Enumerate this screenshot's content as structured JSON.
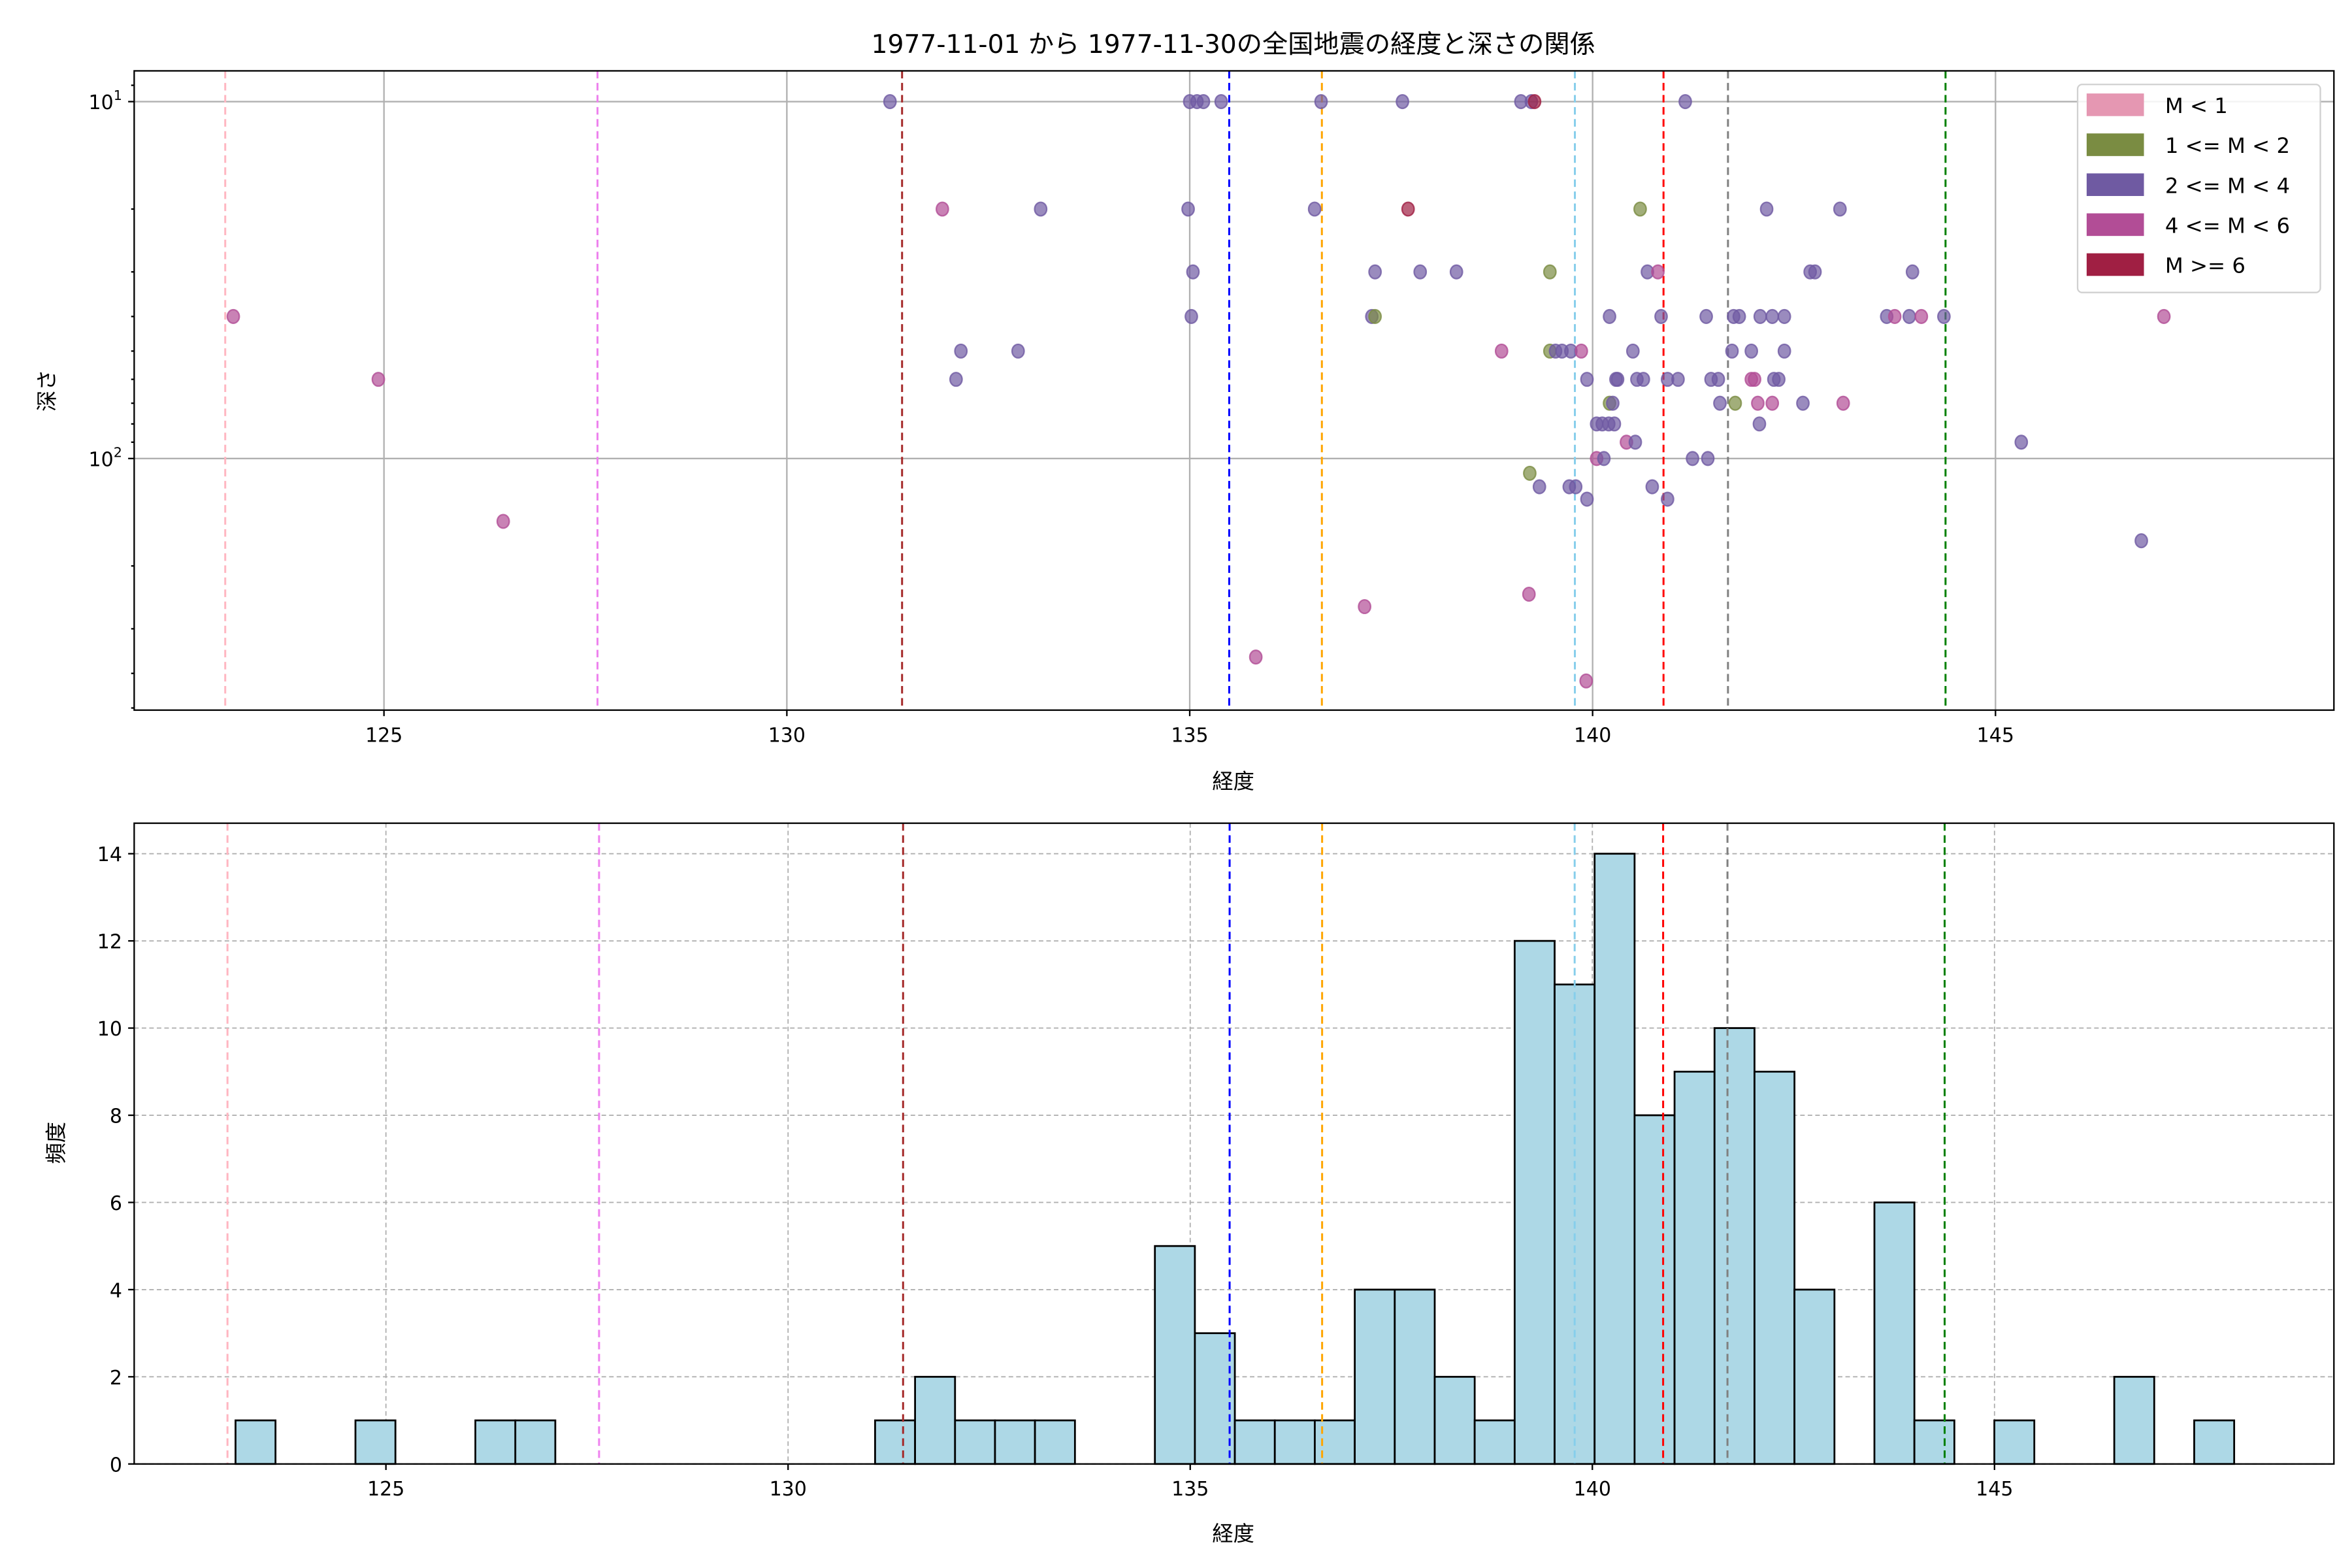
{
  "chart_data": [
    {
      "type": "scatter",
      "title": "1977-11-01 から 1977-11-30の全国地震の経度と深さの関係",
      "xlabel": "経度",
      "ylabel": "深さ",
      "xlim": [
        121.9,
        149.2
      ],
      "ylim": [
        507,
        8.2
      ],
      "yscale": "log",
      "y_inverted": true,
      "xticks": [
        125,
        130,
        135,
        140,
        145
      ],
      "yticks": [
        {
          "value": 10,
          "base": "10",
          "exp": "1"
        },
        {
          "value": 100,
          "base": "10",
          "exp": "2"
        }
      ],
      "grid": true,
      "legend_position": "top-right",
      "legend": [
        {
          "label": "M < 1",
          "color": "#e597b2"
        },
        {
          "label": "1 <= M < 2",
          "color": "#7a8c42"
        },
        {
          "label": "2 <= M < 4",
          "color": "#6f5aa2"
        },
        {
          "label": "4 <= M < 6",
          "color": "#b24d96"
        },
        {
          "label": "M >= 6",
          "color": "#a01f43"
        }
      ],
      "points_format": [
        "longitude",
        "depth",
        "magnitude_class_index"
      ],
      "points": [
        [
          131.28,
          10,
          2
        ],
        [
          135.0,
          10,
          2
        ],
        [
          135.09,
          10,
          2
        ],
        [
          135.17,
          10,
          2
        ],
        [
          135.39,
          10,
          2
        ],
        [
          136.63,
          10,
          2
        ],
        [
          137.64,
          10,
          2
        ],
        [
          139.11,
          10,
          2
        ],
        [
          139.24,
          10,
          2
        ],
        [
          139.28,
          10,
          4
        ],
        [
          141.15,
          10,
          2
        ],
        [
          131.93,
          20,
          3
        ],
        [
          133.15,
          20,
          2
        ],
        [
          134.98,
          20,
          2
        ],
        [
          136.55,
          20,
          2
        ],
        [
          137.71,
          20,
          4
        ],
        [
          140.59,
          20,
          1
        ],
        [
          142.16,
          20,
          2
        ],
        [
          143.07,
          20,
          2
        ],
        [
          135.04,
          30,
          2
        ],
        [
          137.3,
          30,
          2
        ],
        [
          137.86,
          30,
          2
        ],
        [
          138.31,
          30,
          2
        ],
        [
          139.47,
          30,
          1
        ],
        [
          140.68,
          30,
          2
        ],
        [
          140.81,
          30,
          3
        ],
        [
          142.7,
          30,
          2
        ],
        [
          142.76,
          30,
          2
        ],
        [
          143.97,
          30,
          2
        ],
        [
          123.13,
          40,
          3
        ],
        [
          135.02,
          40,
          2
        ],
        [
          137.26,
          40,
          2
        ],
        [
          137.3,
          40,
          1
        ],
        [
          140.21,
          40,
          2
        ],
        [
          140.85,
          40,
          2
        ],
        [
          141.41,
          40,
          2
        ],
        [
          141.75,
          40,
          2
        ],
        [
          141.82,
          40,
          2
        ],
        [
          142.08,
          40,
          2
        ],
        [
          142.23,
          40,
          2
        ],
        [
          142.38,
          40,
          2
        ],
        [
          143.65,
          40,
          2
        ],
        [
          143.75,
          40,
          3
        ],
        [
          143.93,
          40,
          2
        ],
        [
          144.08,
          40,
          3
        ],
        [
          144.36,
          40,
          2
        ],
        [
          147.09,
          40,
          3
        ],
        [
          132.16,
          50,
          2
        ],
        [
          132.87,
          50,
          2
        ],
        [
          138.87,
          50,
          3
        ],
        [
          139.47,
          50,
          1
        ],
        [
          139.54,
          50,
          2
        ],
        [
          139.62,
          50,
          2
        ],
        [
          139.73,
          50,
          2
        ],
        [
          139.86,
          50,
          3
        ],
        [
          140.5,
          50,
          2
        ],
        [
          141.73,
          50,
          2
        ],
        [
          141.97,
          50,
          2
        ],
        [
          142.38,
          50,
          2
        ],
        [
          124.93,
          60,
          3
        ],
        [
          132.1,
          60,
          2
        ],
        [
          139.93,
          60,
          2
        ],
        [
          140.29,
          60,
          2
        ],
        [
          140.31,
          60,
          2
        ],
        [
          140.55,
          60,
          2
        ],
        [
          140.63,
          60,
          2
        ],
        [
          140.93,
          60,
          2
        ],
        [
          141.06,
          60,
          2
        ],
        [
          141.47,
          60,
          2
        ],
        [
          141.56,
          60,
          2
        ],
        [
          141.97,
          60,
          3
        ],
        [
          142.01,
          60,
          3
        ],
        [
          142.25,
          60,
          2
        ],
        [
          142.31,
          60,
          2
        ],
        [
          140.21,
          70,
          1
        ],
        [
          140.25,
          70,
          2
        ],
        [
          141.58,
          70,
          2
        ],
        [
          141.77,
          70,
          1
        ],
        [
          142.05,
          70,
          3
        ],
        [
          142.23,
          70,
          3
        ],
        [
          142.61,
          70,
          2
        ],
        [
          143.11,
          70,
          3
        ],
        [
          140.05,
          80,
          2
        ],
        [
          140.12,
          80,
          2
        ],
        [
          140.2,
          80,
          2
        ],
        [
          140.27,
          80,
          2
        ],
        [
          142.07,
          80,
          2
        ],
        [
          140.42,
          90,
          3
        ],
        [
          140.53,
          90,
          2
        ],
        [
          145.32,
          90,
          2
        ],
        [
          140.05,
          100,
          3
        ],
        [
          140.14,
          100,
          2
        ],
        [
          141.24,
          100,
          2
        ],
        [
          141.43,
          100,
          2
        ],
        [
          139.22,
          110,
          1
        ],
        [
          139.34,
          120,
          2
        ],
        [
          139.71,
          120,
          2
        ],
        [
          139.79,
          120,
          2
        ],
        [
          140.74,
          120,
          2
        ],
        [
          139.93,
          130,
          2
        ],
        [
          140.93,
          130,
          2
        ],
        [
          126.48,
          150,
          3
        ],
        [
          146.81,
          170,
          2
        ],
        [
          139.21,
          240,
          3
        ],
        [
          137.17,
          260,
          3
        ],
        [
          135.82,
          360,
          3
        ],
        [
          139.92,
          420,
          3
        ]
      ]
    },
    {
      "type": "bar",
      "subtype": "histogram",
      "xlabel": "経度",
      "ylabel": "頻度",
      "xlim": [
        121.87,
        149.22
      ],
      "ylim": [
        0,
        14.7
      ],
      "xticks": [
        125,
        130,
        135,
        140,
        145
      ],
      "yticks": [
        0,
        2,
        4,
        6,
        8,
        10,
        12,
        14
      ],
      "grid": true,
      "bin_start": 123.13,
      "bin_width": 0.497,
      "counts": [
        1,
        0,
        0,
        1,
        0,
        0,
        1,
        1,
        0,
        0,
        0,
        0,
        0,
        0,
        0,
        0,
        1,
        2,
        1,
        1,
        1,
        0,
        0,
        5,
        3,
        1,
        1,
        1,
        4,
        4,
        2,
        1,
        12,
        11,
        14,
        8,
        9,
        10,
        9,
        4,
        0,
        6,
        1,
        0,
        1,
        0,
        0,
        2,
        0,
        1
      ],
      "bar_color": "#add8e6"
    }
  ],
  "reference_lines": [
    {
      "value": 123.03,
      "color": "#ffb6c1"
    },
    {
      "value": 127.65,
      "color": "#ee82ee"
    },
    {
      "value": 131.43,
      "color": "#a52a2a"
    },
    {
      "value": 135.49,
      "color": "#0000ff"
    },
    {
      "value": 136.64,
      "color": "#ffa500"
    },
    {
      "value": 139.78,
      "color": "#87ceeb"
    },
    {
      "value": 140.88,
      "color": "#ff0000"
    },
    {
      "value": 141.68,
      "color": "#808080"
    },
    {
      "value": 144.38,
      "color": "#008000"
    }
  ]
}
